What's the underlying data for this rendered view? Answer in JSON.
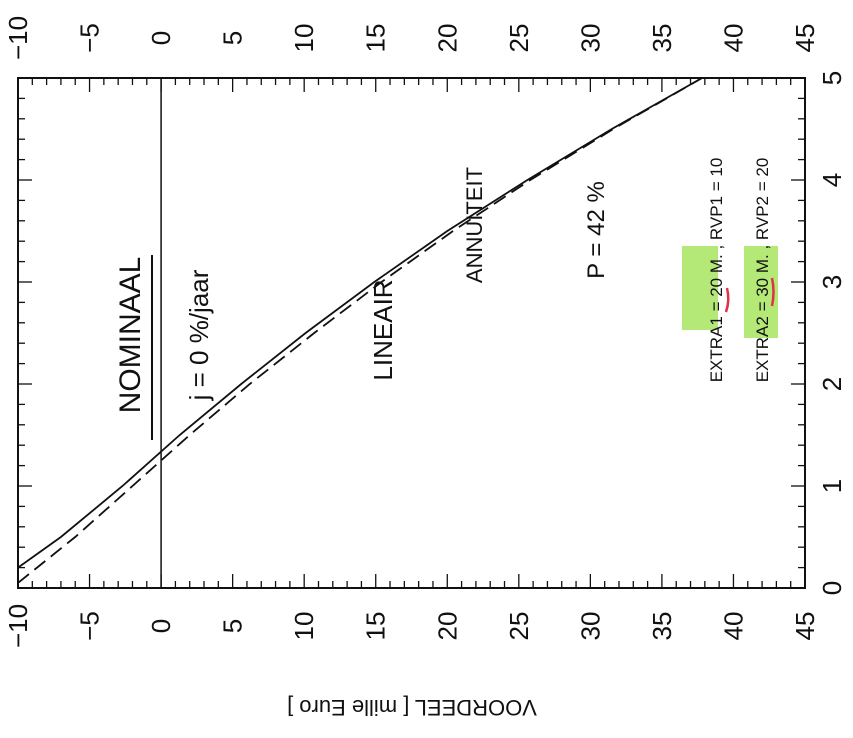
{
  "chart_data": {
    "type": "line",
    "orientation": "rotated-90-clockwise",
    "title": "NOMINAAL",
    "subtitle": "j = 0 %/jaar",
    "ylabel": "VOORDEEL [ mille Euro ]",
    "xlabel": "",
    "xlim": [
      0,
      5
    ],
    "ylim": [
      -10,
      45
    ],
    "x_ticks": [
      "0",
      "1",
      "2",
      "3",
      "4",
      "5"
    ],
    "y_ticks": [
      "−10",
      "−5",
      "0",
      "5",
      "10",
      "15",
      "20",
      "25",
      "30",
      "35",
      "40",
      "45"
    ],
    "grid": false,
    "zero_line": true,
    "annotations": {
      "p_label": "P = 42 %",
      "extra1": "EXTRA1 = 20 M. , RVP1 = 10",
      "extra2": "EXTRA2 = 30 M. , RVP2 = 20"
    },
    "series": [
      {
        "name": "LINEAIR",
        "style": "solid",
        "x": [
          0.2,
          0.5,
          1.0,
          1.5,
          2.0,
          2.5,
          3.0,
          3.5,
          4.0,
          4.5,
          5.0
        ],
        "y": [
          -10,
          -7,
          -2.7,
          1.3,
          5.6,
          10.1,
          14.9,
          20.0,
          25.6,
          31.5,
          37.8
        ]
      },
      {
        "name": "ANNUITEIT",
        "style": "dashed",
        "x": [
          0.05,
          0.5,
          1.0,
          1.5,
          2.0,
          2.5,
          3.0,
          3.5,
          4.0,
          4.5,
          5.0
        ],
        "y": [
          -10,
          -6,
          -2.0,
          2.0,
          6.2,
          10.7,
          15.4,
          20.4,
          25.8,
          31.6,
          37.8
        ]
      }
    ]
  }
}
